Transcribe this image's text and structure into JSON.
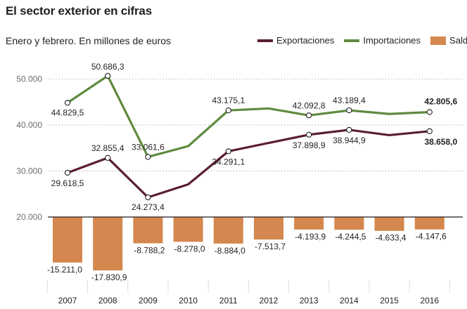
{
  "title": "El sector exterior en cifras",
  "subtitle": "Enero y febrero. En millones de euros",
  "chart_data": {
    "type": "line",
    "categories": [
      "2007",
      "2008",
      "2009",
      "2010",
      "2011",
      "2012",
      "2013",
      "2014",
      "2015",
      "2016"
    ],
    "ylim": [
      20000,
      55000
    ],
    "y_ticks": [
      "20.000",
      "30.000",
      "40.000",
      "50.000"
    ],
    "y_tick_values": [
      20000,
      30000,
      40000,
      50000
    ],
    "grid": "horizontal dotted",
    "legend_position": "top-right",
    "series": [
      {
        "name": "Exportaciones",
        "color": "#5a1e32",
        "values": [
          29618.5,
          32855.4,
          24273.4,
          27100,
          34291.1,
          36100,
          37898.9,
          38944.9,
          37800,
          38658.0
        ],
        "labels": [
          "29.618,5",
          "32.855,4",
          "24.273,4",
          "",
          "34.291,1",
          "",
          "37.898,9",
          "38.944,9",
          "",
          "38.658,0"
        ],
        "markers": [
          true,
          true,
          true,
          false,
          true,
          false,
          true,
          true,
          false,
          true
        ],
        "bold_labels": [
          false,
          false,
          false,
          false,
          false,
          false,
          false,
          false,
          false,
          true
        ]
      },
      {
        "name": "Importaciones",
        "color": "#5f8a3f",
        "values": [
          44829.5,
          50686.3,
          33061.6,
          35400,
          43175.1,
          43600,
          42092.8,
          43189.4,
          42400,
          42805.6
        ],
        "labels": [
          "44.829,5",
          "50.686,3",
          "33.061,6",
          "",
          "43.175,1",
          "",
          "42.092,8",
          "43.189,4",
          "",
          "42.805,6"
        ],
        "markers": [
          true,
          true,
          true,
          false,
          true,
          false,
          true,
          true,
          false,
          true
        ],
        "bold_labels": [
          false,
          false,
          false,
          false,
          false,
          false,
          false,
          false,
          false,
          true
        ]
      },
      {
        "name": "Saldo",
        "type": "bar",
        "color": "#d4874e",
        "baseline": 20000,
        "scale_note": "bars drawn downward from 20.000 baseline",
        "values": [
          -15211.0,
          -17830.9,
          -8788.2,
          -8278.0,
          -8884.0,
          -7513.7,
          -4193.9,
          -4244.5,
          -4633.4,
          -4147.6
        ],
        "labels": [
          "-15.211,0",
          "-17.830,9",
          "-8.788,2",
          "-8.278,0",
          "-8.884,0",
          "-7.513,7",
          "-4.193,9",
          "-4.244,5",
          "-4.633,4",
          "-4.147,6"
        ]
      }
    ]
  }
}
